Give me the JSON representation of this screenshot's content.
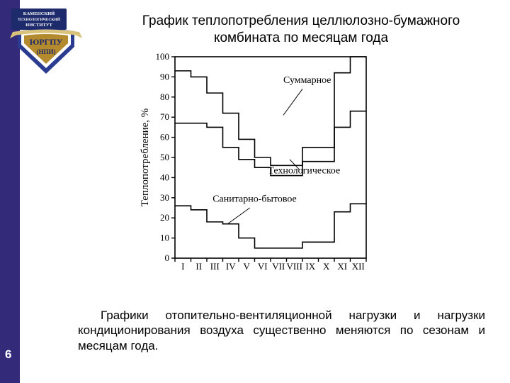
{
  "page_number": "6",
  "title": "График теплопотребления целлюлозно-бумажного комбината по месяцам года",
  "caption": "Графики отопительно-вентиляционной нагрузки и нагрузки кондиционирования воздуха существенно меняются по сезонам и месяцам года.",
  "logo": {
    "top_text": "КАМЕНСКИЙ\nТЕХНОЛОГИЧЕСКИЙ\nИНСТИТУТ",
    "bottom_text": "ЮРГПУ\n(НПИ)",
    "plate_colors": [
      "#2a3c8f",
      "#ffffff",
      "#b38a2d"
    ],
    "bg_color": "#1d2a6b"
  },
  "chart": {
    "type": "step-line",
    "ylabel": "Теплопотребление, %",
    "label_fontsize": 15,
    "tick_fontsize": 13,
    "ylim": [
      0,
      100
    ],
    "ytick_step": 10,
    "x_categories": [
      "I",
      "II",
      "III",
      "IV",
      "V",
      "VI",
      "VII",
      "VIII",
      "IX",
      "X",
      "XI",
      "XII"
    ],
    "line_color": "#000000",
    "line_width": 1.6,
    "frame_color": "#000000",
    "frame_width": 1.6,
    "background_color": "#ffffff",
    "series": [
      {
        "name": "Суммарное",
        "label_xy": [
          8.3,
          87
        ],
        "leader_from": [
          8.0,
          84
        ],
        "leader_to": [
          6.8,
          71
        ],
        "values": [
          93,
          90,
          82,
          72,
          59,
          50,
          46,
          46,
          55,
          55,
          92,
          100
        ]
      },
      {
        "name": "Технологическое",
        "label_xy": [
          8.1,
          42
        ],
        "leader_from": [
          7.8,
          44
        ],
        "leader_to": [
          7.2,
          49
        ],
        "values": [
          67,
          67,
          65,
          55,
          49,
          45,
          41,
          41,
          48,
          48,
          65,
          73
        ]
      },
      {
        "name": "Санитарно-бытовое",
        "label_xy": [
          5.0,
          28
        ],
        "leader_from": [
          4.7,
          25
        ],
        "leader_to": [
          3.3,
          17
        ],
        "values": [
          26,
          24,
          18,
          17,
          10,
          5,
          5,
          5,
          8,
          8,
          23,
          27
        ]
      }
    ]
  }
}
